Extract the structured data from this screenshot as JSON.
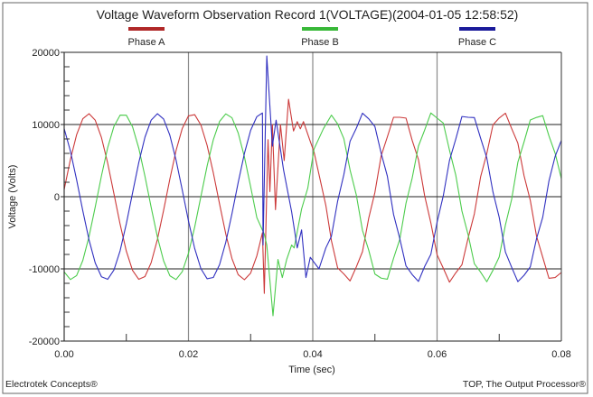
{
  "chart_data": {
    "type": "line",
    "title": "Voltage Waveform Observation Record 1(VOLTAGE)(2004-01-05 12:58:52)",
    "xlabel": "Time (sec)",
    "ylabel": "Voltage (Volts)",
    "xlim": [
      0,
      0.08
    ],
    "ylim": [
      -20000,
      20000
    ],
    "x_ticks": [
      "0.00",
      "0.02",
      "0.04",
      "0.06",
      "0.08"
    ],
    "y_ticks": [
      "20000",
      "10000",
      "0",
      "-10000",
      "-20000"
    ],
    "grid": true,
    "legend": "top",
    "footer_left": "Electrotek Concepts®",
    "footer_right": "TOP, The Output Processor®",
    "series": [
      {
        "name": "Phase A",
        "color": "#cc3a3a",
        "legend_color": "#b02828",
        "points": [
          [
            0,
            1000
          ],
          [
            0.001,
            5150
          ],
          [
            0.002,
            8580
          ],
          [
            0.003,
            10800
          ],
          [
            0.004,
            11500
          ],
          [
            0.005,
            10590
          ],
          [
            0.006,
            8190
          ],
          [
            0.007,
            4650
          ],
          [
            0.008,
            440
          ],
          [
            0.009,
            -3820
          ],
          [
            0.01,
            -7540
          ],
          [
            0.011,
            -10210
          ],
          [
            0.012,
            -11440
          ],
          [
            0.013,
            -11060
          ],
          [
            0.014,
            -9130
          ],
          [
            0.015,
            -5920
          ],
          [
            0.016,
            -1870
          ],
          [
            0.017,
            2430
          ],
          [
            0.018,
            6390
          ],
          [
            0.019,
            9460
          ],
          [
            0.02,
            11200
          ],
          [
            0.021,
            11370
          ],
          [
            0.022,
            9940
          ],
          [
            0.023,
            7110
          ],
          [
            0.024,
            3290
          ],
          [
            0.025,
            -1000
          ],
          [
            0.026,
            -5150
          ],
          [
            0.027,
            -8580
          ],
          [
            0.028,
            -10800
          ],
          [
            0.029,
            -11500
          ],
          [
            0.03,
            -10590
          ],
          [
            0.031,
            -8190
          ],
          [
            0.0319,
            -5000
          ],
          [
            0.0322,
            -13400
          ],
          [
            0.0328,
            7900
          ],
          [
            0.0331,
            700
          ],
          [
            0.0335,
            10000
          ],
          [
            0.034,
            -1800
          ],
          [
            0.0348,
            10000
          ],
          [
            0.0354,
            5000
          ],
          [
            0.0361,
            13500
          ],
          [
            0.0369,
            9100
          ],
          [
            0.0375,
            10400
          ],
          [
            0.038,
            9400
          ],
          [
            0.0385,
            10400
          ],
          [
            0.0395,
            7900
          ],
          [
            0.0402,
            6200
          ],
          [
            0.0421,
            -1200
          ],
          [
            0.043,
            -6090
          ],
          [
            0.044,
            -9860
          ],
          [
            0.045,
            -10700
          ],
          [
            0.046,
            -11670
          ],
          [
            0.047,
            -9740
          ],
          [
            0.048,
            -7610
          ],
          [
            0.049,
            -2990
          ],
          [
            0.05,
            600
          ],
          [
            0.051,
            5650
          ],
          [
            0.052,
            8280
          ],
          [
            0.053,
            11000
          ],
          [
            0.054,
            11000
          ],
          [
            0.055,
            10890
          ],
          [
            0.056,
            7790
          ],
          [
            0.057,
            5150
          ],
          [
            0.058,
            140
          ],
          [
            0.059,
            -3620
          ],
          [
            0.06,
            -8040
          ],
          [
            0.061,
            -9910
          ],
          [
            0.062,
            -11840
          ],
          [
            0.063,
            -10560
          ],
          [
            0.064,
            -9430
          ],
          [
            0.065,
            -5720
          ],
          [
            0.066,
            -2370
          ],
          [
            0.067,
            2730
          ],
          [
            0.068,
            5990
          ],
          [
            0.069,
            9960
          ],
          [
            0.07,
            10900
          ],
          [
            0.071,
            11570
          ],
          [
            0.072,
            9440
          ],
          [
            0.073,
            7410
          ],
          [
            0.074,
            2890
          ],
          [
            0.075,
            -500
          ],
          [
            0.076,
            -5450
          ],
          [
            0.077,
            -8380
          ],
          [
            0.078,
            -11300
          ],
          [
            0.079,
            -11200
          ],
          [
            0.08,
            -10500
          ]
        ]
      },
      {
        "name": "Phase B",
        "color": "#4ccc4c",
        "legend_color": "#38b838",
        "points": [
          [
            0,
            -10420
          ],
          [
            0.001,
            -11480
          ],
          [
            0.002,
            -10930
          ],
          [
            0.003,
            -8830
          ],
          [
            0.004,
            -5510
          ],
          [
            0.005,
            -1400
          ],
          [
            0.006,
            2900
          ],
          [
            0.007,
            6800
          ],
          [
            0.008,
            9730
          ],
          [
            0.009,
            11300
          ],
          [
            0.01,
            11290
          ],
          [
            0.011,
            9690
          ],
          [
            0.012,
            6730
          ],
          [
            0.013,
            2820
          ],
          [
            0.014,
            -1480
          ],
          [
            0.015,
            -5580
          ],
          [
            0.016,
            -8890
          ],
          [
            0.017,
            -10950
          ],
          [
            0.018,
            -11480
          ],
          [
            0.019,
            -10380
          ],
          [
            0.02,
            -7840
          ],
          [
            0.021,
            -4200
          ],
          [
            0.022,
            30
          ],
          [
            0.023,
            4270
          ],
          [
            0.024,
            7900
          ],
          [
            0.025,
            10420
          ],
          [
            0.026,
            11480
          ],
          [
            0.027,
            10930
          ],
          [
            0.028,
            8830
          ],
          [
            0.029,
            5510
          ],
          [
            0.03,
            1400
          ],
          [
            0.031,
            -2900
          ],
          [
            0.0322,
            -5200
          ],
          [
            0.0326,
            -6700
          ],
          [
            0.0336,
            -16500
          ],
          [
            0.0344,
            -8700
          ],
          [
            0.0351,
            -11200
          ],
          [
            0.0358,
            -8700
          ],
          [
            0.0366,
            -6700
          ],
          [
            0.037,
            -7100
          ],
          [
            0.0382,
            -1700
          ],
          [
            0.0392,
            1200
          ],
          [
            0.0402,
            6600
          ],
          [
            0.0417,
            9400
          ],
          [
            0.043,
            11300
          ],
          [
            0.044,
            10080
          ],
          [
            0.045,
            8040
          ],
          [
            0.046,
            3700
          ],
          [
            0.047,
            270
          ],
          [
            0.048,
            -4670
          ],
          [
            0.049,
            -7400
          ],
          [
            0.05,
            -10720
          ],
          [
            0.051,
            -11280
          ],
          [
            0.052,
            -11430
          ],
          [
            0.053,
            -8530
          ],
          [
            0.054,
            -5910
          ],
          [
            0.055,
            -900
          ],
          [
            0.056,
            2600
          ],
          [
            0.057,
            7000
          ],
          [
            0.058,
            9230
          ],
          [
            0.059,
            11600
          ],
          [
            0.06,
            10890
          ],
          [
            0.061,
            10190
          ],
          [
            0.062,
            6430
          ],
          [
            0.063,
            3020
          ],
          [
            0.064,
            -1980
          ],
          [
            0.065,
            -5280
          ],
          [
            0.066,
            -9290
          ],
          [
            0.067,
            -10450
          ],
          [
            0.068,
            -11780
          ],
          [
            0.069,
            -10180
          ],
          [
            0.07,
            -8340
          ],
          [
            0.071,
            -3900
          ],
          [
            0.072,
            -370
          ],
          [
            0.073,
            4770
          ],
          [
            0.074,
            7600
          ],
          [
            0.075,
            10620
          ],
          [
            0.076,
            10980
          ],
          [
            0.077,
            11230
          ],
          [
            0.078,
            8430
          ],
          [
            0.079,
            6010
          ],
          [
            0.08,
            2500
          ]
        ]
      },
      {
        "name": "Phase C",
        "color": "#3030c0",
        "legend_color": "#1a1a9a",
        "points": [
          [
            0,
            9420
          ],
          [
            0.001,
            6330
          ],
          [
            0.002,
            2350
          ],
          [
            0.003,
            -1970
          ],
          [
            0.004,
            -5990
          ],
          [
            0.005,
            -9190
          ],
          [
            0.006,
            -11090
          ],
          [
            0.007,
            -11440
          ],
          [
            0.008,
            -10170
          ],
          [
            0.009,
            -7490
          ],
          [
            0.01,
            -3750
          ],
          [
            0.011,
            520
          ],
          [
            0.012,
            4720
          ],
          [
            0.013,
            8250
          ],
          [
            0.014,
            10610
          ],
          [
            0.015,
            11500
          ],
          [
            0.016,
            10760
          ],
          [
            0.017,
            8520
          ],
          [
            0.018,
            5080
          ],
          [
            0.019,
            920
          ],
          [
            0.02,
            -3360
          ],
          [
            0.021,
            -7180
          ],
          [
            0.022,
            -9970
          ],
          [
            0.023,
            -11370
          ],
          [
            0.024,
            -11190
          ],
          [
            0.025,
            -9420
          ],
          [
            0.026,
            -6330
          ],
          [
            0.027,
            -2350
          ],
          [
            0.028,
            1970
          ],
          [
            0.029,
            5990
          ],
          [
            0.03,
            9190
          ],
          [
            0.031,
            11090
          ],
          [
            0.0319,
            11600
          ],
          [
            0.032,
            -6700
          ],
          [
            0.0326,
            19500
          ],
          [
            0.0335,
            7000
          ],
          [
            0.0341,
            10600
          ],
          [
            0.0353,
            3700
          ],
          [
            0.0366,
            -2100
          ],
          [
            0.0375,
            -7100
          ],
          [
            0.0382,
            -4600
          ],
          [
            0.0389,
            -11200
          ],
          [
            0.0396,
            -8400
          ],
          [
            0.041,
            -10000
          ],
          [
            0.0421,
            -7100
          ],
          [
            0.043,
            -5480
          ],
          [
            0.044,
            -620
          ],
          [
            0.045,
            3060
          ],
          [
            0.046,
            7680
          ],
          [
            0.047,
            9470
          ],
          [
            0.048,
            11570
          ],
          [
            0.049,
            10790
          ],
          [
            0.05,
            9720
          ],
          [
            0.051,
            6030
          ],
          [
            0.052,
            2850
          ],
          [
            0.053,
            -2470
          ],
          [
            0.054,
            -5790
          ],
          [
            0.055,
            -9590
          ],
          [
            0.056,
            -10790
          ],
          [
            0.057,
            -11740
          ],
          [
            0.058,
            -9670
          ],
          [
            0.059,
            -7990
          ],
          [
            0.06,
            -3550
          ],
          [
            0.061,
            120
          ],
          [
            0.062,
            5020
          ],
          [
            0.063,
            7950
          ],
          [
            0.064,
            11110
          ],
          [
            0.065,
            11000
          ],
          [
            0.066,
            10960
          ],
          [
            0.067,
            8120
          ],
          [
            0.068,
            5380
          ],
          [
            0.069,
            620
          ],
          [
            0.07,
            -2860
          ],
          [
            0.071,
            -7680
          ],
          [
            0.072,
            -9770
          ],
          [
            0.073,
            -11770
          ],
          [
            0.074,
            -10890
          ],
          [
            0.075,
            -9720
          ],
          [
            0.076,
            -5830
          ],
          [
            0.077,
            -2850
          ],
          [
            0.078,
            2170
          ],
          [
            0.079,
            5590
          ],
          [
            0.08,
            7800
          ]
        ]
      }
    ]
  }
}
